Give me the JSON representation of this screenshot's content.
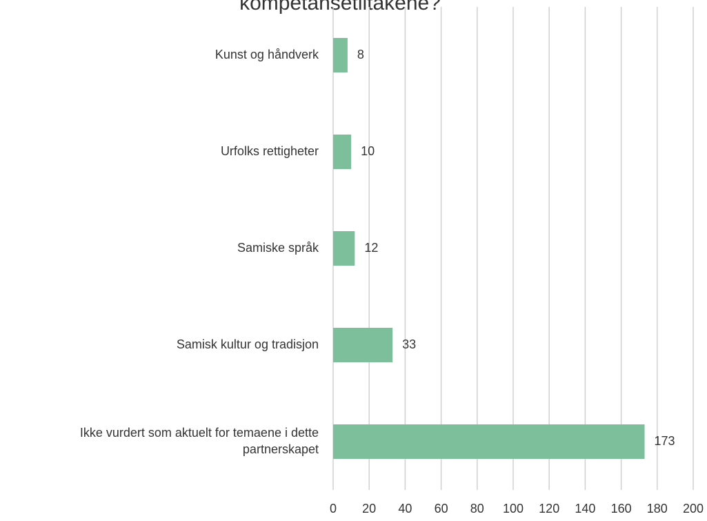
{
  "chart_data": {
    "type": "barh",
    "title": "kompetansetiltakene?",
    "categories": [
      "Kunst og håndverk",
      "Urfolks rettigheter",
      "Samiske språk",
      "Samisk kultur og tradisjon",
      "Ikke vurdert som aktuelt for temaene i dette partnerskapet"
    ],
    "values": [
      8,
      10,
      12,
      33,
      173
    ],
    "color": "#7dbf9b",
    "xlim": [
      0,
      200
    ],
    "xticks": [
      0,
      20,
      40,
      60,
      80,
      100,
      120,
      140,
      160,
      180,
      200
    ],
    "grid": true
  }
}
